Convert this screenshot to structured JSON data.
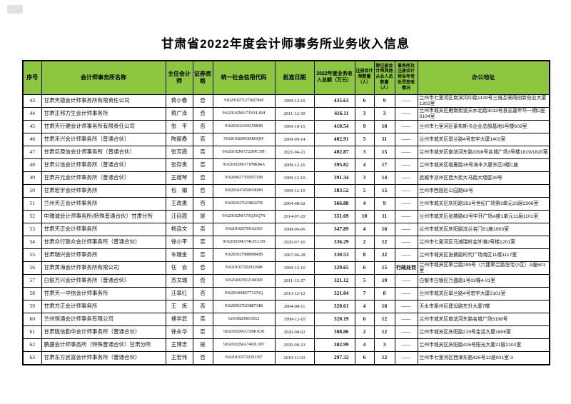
{
  "accent": {
    "header_green": "#8dc63f"
  },
  "page": {
    "title": "甘肃省2022年度会计师事务所业务收入信息"
  },
  "table": {
    "columns": [
      {
        "key": "no",
        "label": "序号"
      },
      {
        "key": "name",
        "label": "会计师事务所名称"
      },
      {
        "key": "chief",
        "label": "主任会计师"
      },
      {
        "key": "sec",
        "label": "证券资格"
      },
      {
        "key": "code",
        "label": "统一社会信用代码"
      },
      {
        "key": "date",
        "label": "批准日期"
      },
      {
        "key": "income",
        "label": "2022年度业务收入总额（万元）"
      },
      {
        "key": "cpa",
        "label": "注册会计师数量（人）"
      },
      {
        "key": "staff",
        "label": "除注册会计师其他从业人员数量（人）"
      },
      {
        "key": "punish",
        "label": "事务所及注册会计师当年受处罚惩戒情况"
      },
      {
        "key": "addr",
        "label": "办公地址"
      }
    ],
    "dash": "——",
    "rows": [
      {
        "no": "43",
        "name": "甘肃天德会计师事务所有限责任公司",
        "chief": "蒋小春",
        "sec": "否",
        "code": "91620102712738274M",
        "date": "1999-12-10",
        "income": "435.63",
        "cpa": "6",
        "staff": "9",
        "punish": "——",
        "addr": "兰州市七里河区南滨河中路1139号三维互联网创新创业大厦1302室"
      },
      {
        "no": "44",
        "name": "甘肃正邦力生会计师事务所",
        "chief": "蒋广泽",
        "sec": "否",
        "code": "91620102MA73NYLJ6H",
        "date": "2011-12-30",
        "income": "416.11",
        "cpa": "3",
        "staff": "3",
        "punish": "——",
        "addr": "兰州市城关区雁南街道天水北路3013号良志嘉年华一期C座3104室"
      },
      {
        "no": "45",
        "name": "甘肃天行健会计师事务所有限责任公司",
        "chief": "张　平",
        "sec": "否",
        "code": "91620102243415083B",
        "date": "1999-10-15",
        "income": "410.54",
        "cpa": "9",
        "staff": "10",
        "punish": "——",
        "addr": "兰州市七里河区豪布斯卡企业总部基地3号楼609室"
      },
      {
        "no": "46",
        "name": "甘肃禾兴会计师事务所（普通合伙）",
        "chief": "陶丽春",
        "sec": "否",
        "code": "9162010269030083QW",
        "date": "2009-09-14",
        "income": "402.91",
        "cpa": "5",
        "staff": "11",
        "punish": "——",
        "addr": "兰州市城关区皋兰路4号宏宇大厦1403室"
      },
      {
        "no": "47",
        "name": "甘肃巨原信会计师事务所（普通合伙）",
        "chief": "张芳霞",
        "sec": "否",
        "code": "91620102MA722MC39T",
        "date": "2021-04-21",
        "income": "402.87",
        "cpa": "3",
        "staff": "15",
        "punish": "——",
        "addr": "兰州市城关区南滨河东路3398号名城广场3号楼1819/1820室"
      },
      {
        "no": "48",
        "name": "甘肃公信会计师事务所（普通合伙）",
        "chief": "张存贵",
        "sec": "否",
        "code": "91620102MA71P8K84A",
        "date": "2008-12-16",
        "income": "395.82",
        "cpa": "4",
        "staff": "17",
        "punish": "——",
        "addr": "兰州市城关区临夏路35号涛丰大厦东区9楼C座"
      },
      {
        "no": "49",
        "name": "甘肃开元会计师事务所（普通合伙）",
        "chief": "王越琴",
        "sec": "否",
        "code": "91620602735929733B",
        "date": "1999-12-10",
        "income": "391.34",
        "cpa": "3",
        "staff": "14",
        "punish": "——",
        "addr": "武威市凉州区西大街大马路大墙壁39号"
      },
      {
        "no": "50",
        "name": "甘肃宏宇会计师事务所",
        "chief": "包　娟",
        "sec": "否",
        "code": "91620104745991968N",
        "date": "1999-12-10",
        "income": "383.52",
        "cpa": "5",
        "staff": "15",
        "punish": "——",
        "addr": "兰州市西固区公园路60号"
      },
      {
        "no": "51",
        "name": "兰州天正会计师事务所",
        "chief": "王改惠",
        "sec": "否",
        "code": "91620102762389227R",
        "date": "2004-08-02",
        "income": "366.88",
        "cpa": "4",
        "staff": "9",
        "punish": "——",
        "addr": "兰州市城关区庆阳路352号世纪广场第3单元23层2306室"
      },
      {
        "no": "52",
        "name": "中瑞诚会计师事务所(特殊普通合伙）甘肃分所",
        "chief": "汪自霞",
        "sec": "是",
        "code": "91620102MA73Q35Q7N",
        "date": "2014-07-29",
        "income": "351.69",
        "cpa": "10",
        "staff": "11",
        "punish": "——",
        "addr": "兰州市城关区张掖路63号中环广场A座1单元11层1101室"
      },
      {
        "no": "53",
        "name": "甘肃天正会计师事务所",
        "chief": "杨连文",
        "sec": "否",
        "code": "916201026759162303",
        "date": "2008-06-06",
        "income": "347.89",
        "cpa": "4",
        "staff": "16",
        "punish": "——",
        "addr": "兰州市城关区庆阳路滨兰名门B1座1903室"
      },
      {
        "no": "54",
        "name": "甘肃众行联众会计师事务所（普通合伙）",
        "chief": "徐小平",
        "sec": "否",
        "code": "91620103MA74LFLG39",
        "date": "2020-07-16",
        "income": "336.29",
        "cpa": "2",
        "staff": "12",
        "punish": "——",
        "addr": "兰州市七里河区马滩瑞岭金外滩2号楼1201室"
      },
      {
        "no": "55",
        "name": "甘肃瑞兴会计师事务所",
        "chief": "车瑞金",
        "sec": "否",
        "code": "91620102798899843B",
        "date": "2007-04-28",
        "income": "330.53",
        "cpa": "8",
        "staff": "22",
        "punish": "——",
        "addr": "兰州市城关区张掖路时代广场南区11楼1117室"
      },
      {
        "no": "56",
        "name": "甘肃黄海会计师事务所有限公司",
        "chief": "任　会",
        "sec": "否",
        "code": "916201027202932948",
        "date": "1999-12-10",
        "income": "329.65",
        "cpa": "6",
        "staff": "15",
        "punish": "行政处罚",
        "addr": "兰州市城关区皋兰路299号（六建皋兰路住宅小区）A座601室"
      },
      {
        "no": "57",
        "name": "白银万兴会计师事务所（普通合伙）",
        "chief": "苏文瑞",
        "sec": "否",
        "code": "916204023912168300",
        "date": "2011-12-27",
        "income": "321.12",
        "cpa": "5",
        "staff": "19",
        "punish": "——",
        "addr": "白银市白银区万盛路1号03幢4-01室"
      },
      {
        "no": "58",
        "name": "甘肃天一中信会计师事务所",
        "chief": "汪翠红",
        "sec": "否",
        "code": "91620100085771276Q",
        "date": "2013-12-12",
        "income": "321.04",
        "cpa": "7",
        "staff": "8",
        "punish": "——",
        "addr": "兰州市城关区皋兰路4号宏宇大厦2101室"
      },
      {
        "no": "59",
        "name": "甘肃方正会计师事务所",
        "chief": "王　炼",
        "sec": "否",
        "code": "91620502762388734B",
        "date": "2004-08-11",
        "income": "320.61",
        "cpa": "4",
        "staff": "16",
        "punish": "——",
        "addr": "天水市秦州区建设路东升大厦7楼"
      },
      {
        "no": "60",
        "name": "兰州恒通会计师事务有限公司",
        "chief": "褚学武",
        "sec": "否",
        "code": "620108200033012",
        "date": "1999-12-10",
        "income": "320.19",
        "cpa": "6",
        "staff": "12",
        "punish": "——",
        "addr": "兰州市城关区南滨河东路名城广场5198号"
      },
      {
        "no": "61",
        "name": "甘肃陇信勤华会计师事务所（普通合伙）",
        "chief": "徐永华",
        "sec": "否",
        "code": "91620102MA72041K30",
        "date": "2020-08-02",
        "income": "308.86",
        "cpa": "2",
        "staff": "12",
        "punish": "——",
        "addr": "兰州市城关区庆阳路219号金运大厦1806室"
      },
      {
        "no": "62",
        "name": "鹏盛会计师事务所（特殊普通合伙）甘肃分所",
        "chief": "王博忠",
        "sec": "是",
        "code": "91620102MA7493L39T",
        "date": "2020-09-23",
        "income": "302.99",
        "cpa": "4",
        "staff": "3",
        "punish": "——",
        "addr": "兰州市城关区庆阳路426号阳光大厦21层2102室"
      },
      {
        "no": "63",
        "name": "甘肃东方民富会计师事务所（普通合伙）",
        "chief": "王宏伟",
        "sec": "否",
        "code": "916201025710291397",
        "date": "2010-11-03",
        "income": "297.32",
        "cpa": "6",
        "staff": "12",
        "punish": "——",
        "addr": "兰州市七里河区西津东路426号12层001室-3"
      }
    ]
  }
}
